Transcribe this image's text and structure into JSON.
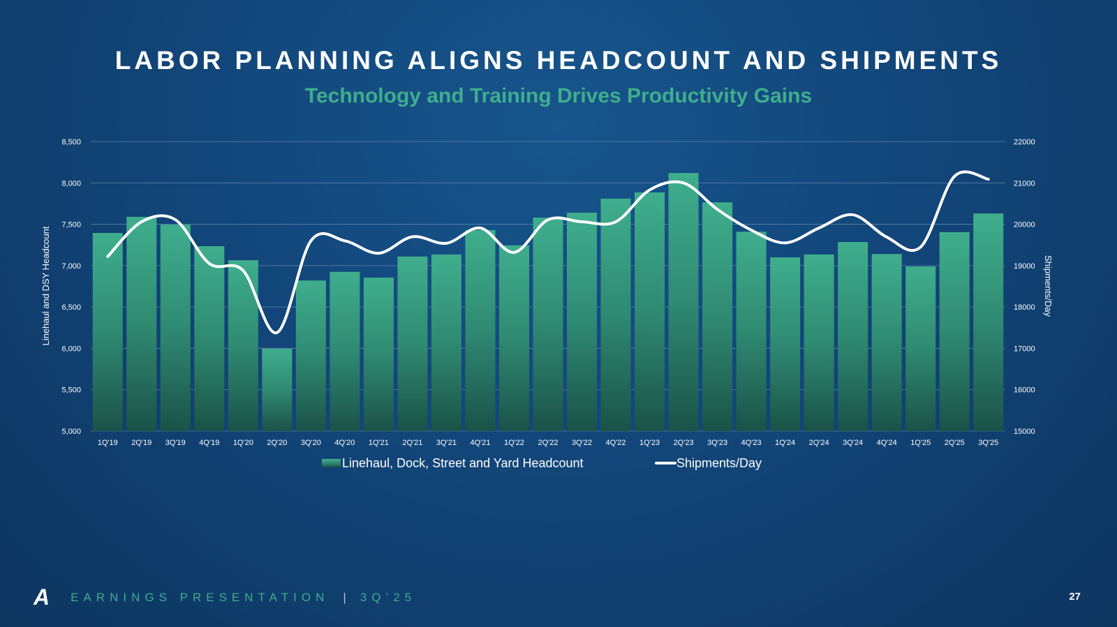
{
  "title": "LABOR PLANNING ALIGNS HEADCOUNT AND SHIPMENTS",
  "subtitle": "Technology and Training Drives Productivity Gains",
  "footer": {
    "logo": "A",
    "label": "EARNINGS PRESENTATION",
    "separator": "|",
    "period": "3Q’25",
    "page": "27"
  },
  "colors": {
    "bar_top": "#3fae8d",
    "bar_bottom": "#1b5248",
    "line": "#ffffff",
    "subtitle": "#3fae8d"
  },
  "chart_data": {
    "type": "bar+line",
    "categories": [
      "1Q'19",
      "2Q'19",
      "3Q'19",
      "4Q'19",
      "1Q'20",
      "2Q'20",
      "3Q'20",
      "4Q'20",
      "1Q'21",
      "2Q'21",
      "3Q'21",
      "4Q'21",
      "1Q'22",
      "2Q'22",
      "3Q'22",
      "4Q'22",
      "1Q'23",
      "2Q'23",
      "3Q'23",
      "4Q'23",
      "1Q'24",
      "2Q'24",
      "3Q'24",
      "4Q'24",
      "1Q'25",
      "2Q'25",
      "3Q'25"
    ],
    "ylabel": "Linehaul and DSY Headcount",
    "y2label": "Shipments/Day",
    "ylim": [
      5000,
      8500
    ],
    "y2lim": [
      15000,
      22000
    ],
    "yticks": [
      "5,000",
      "5,500",
      "6,000",
      "6,500",
      "7,000",
      "7,500",
      "8,000",
      "8,500"
    ],
    "y2ticks": [
      "15000",
      "16000",
      "17000",
      "18000",
      "19000",
      "20000",
      "21000",
      "22000"
    ],
    "grid": true,
    "legend_position": "bottom",
    "series": [
      {
        "name": "Linehaul, Dock, Street and Yard Headcount",
        "type": "bar",
        "axis": "left",
        "values": [
          7395,
          7590,
          7495,
          7235,
          7065,
          5995,
          6820,
          6925,
          6855,
          7110,
          7135,
          7430,
          7245,
          7580,
          7640,
          7810,
          7885,
          8120,
          7765,
          7410,
          7100,
          7135,
          7285,
          7140,
          6990,
          7405,
          7630
        ]
      },
      {
        "name": "Shipments/Day",
        "type": "line",
        "axis": "right",
        "values": [
          19220,
          20060,
          20110,
          19050,
          18880,
          17380,
          19600,
          19600,
          19300,
          19700,
          19540,
          19910,
          19320,
          20110,
          20060,
          20060,
          20830,
          21000,
          20360,
          19860,
          19550,
          19910,
          20230,
          19690,
          19450,
          21160,
          21090
        ]
      }
    ]
  }
}
